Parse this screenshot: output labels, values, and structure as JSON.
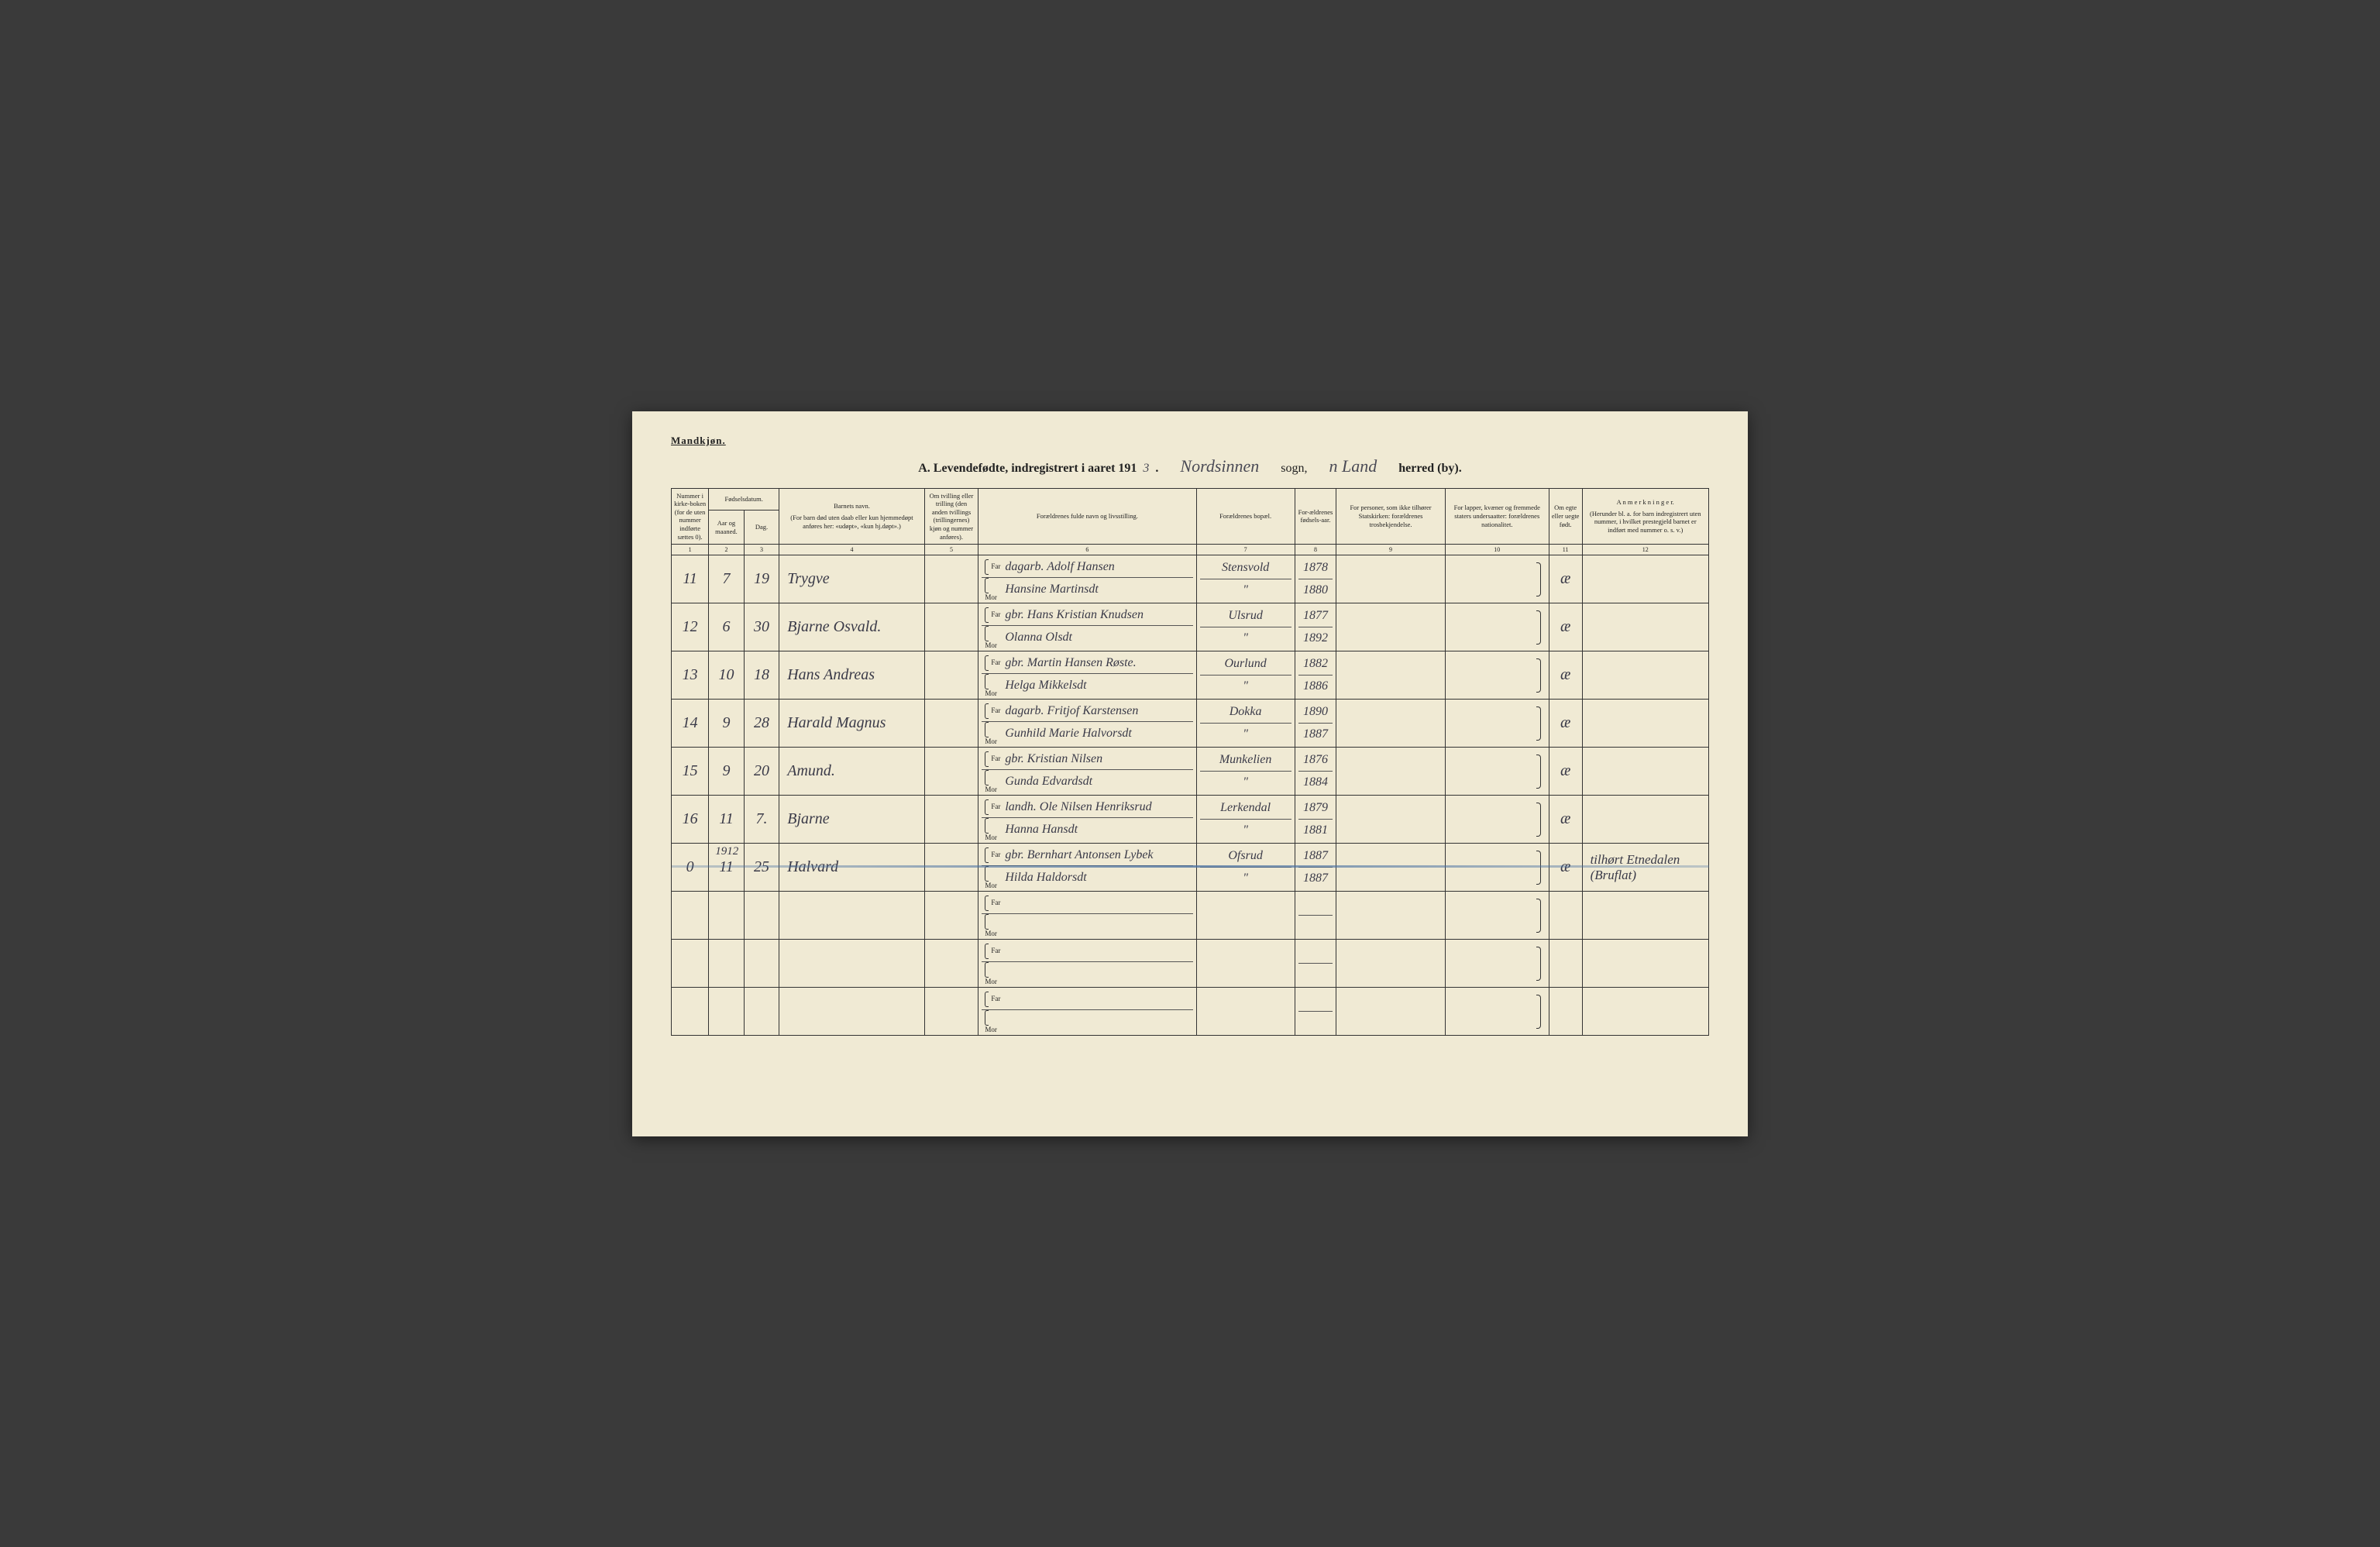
{
  "gender_label": "Mandkjøn.",
  "title": {
    "prefix": "A.  Levendefødte, indregistrert i aaret 191",
    "year_digit": "3",
    "dot": " .",
    "sogn_hand": "Nordsinnen",
    "sogn_label": "sogn,",
    "herred_hand": "n Land",
    "herred_label": "herred (by)."
  },
  "headers": {
    "c1": "Nummer i kirke-boken (for de uten nummer indførte sættes 0).",
    "c2_top": "Fødselsdatum.",
    "c2a": "Aar og maaned.",
    "c2b": "Dag.",
    "c4_top": "Barnets navn.",
    "c4_sub": "(For barn død uten daab eller kun hjemmedøpt anføres her: «udøpt», «kun hj.døpt».)",
    "c5": "Om tvilling eller trilling (den anden tvillings (trillingernes) kjøn og nummer anføres).",
    "c6": "Forældrenes fulde navn og livsstilling.",
    "c7": "Forældrenes bopæl.",
    "c8": "For-ældrenes fødsels-aar.",
    "c9": "For personer, som ikke tilhører Statskirken: forældrenes trosbekjendelse.",
    "c10": "For lapper, kvæner og fremmede staters undersaatter: forældrenes nationalitet.",
    "c11": "Om egte eller uegte født.",
    "c12_top": "A n m e r k n i n g e r.",
    "c12_sub": "(Herunder bl. a. for barn indregistrert uten nummer, i hvilket prestegjeld barnet er indført med nummer o. s. v.)"
  },
  "colnums": [
    "1",
    "2",
    "3",
    "4",
    "5",
    "6",
    "7",
    "8",
    "9",
    "10",
    "11",
    "12"
  ],
  "far_label": "Far",
  "mor_label": "Mor",
  "rows": [
    {
      "num": "11",
      "mnd": "7",
      "dag": "19",
      "navn": "Trygve",
      "far": "dagarb. Adolf Hansen",
      "mor": "Hansine Martinsdt",
      "bopel": "Stensvold",
      "bopel2": "\"",
      "yr1": "1878",
      "yr2": "1880",
      "egte": "æ",
      "anm": ""
    },
    {
      "num": "12",
      "mnd": "6",
      "dag": "30",
      "navn": "Bjarne Osvald.",
      "far": "gbr. Hans Kristian Knudsen",
      "mor": "Olanna Olsdt",
      "bopel": "Ulsrud",
      "bopel2": "\"",
      "yr1": "1877",
      "yr2": "1892",
      "egte": "æ",
      "anm": ""
    },
    {
      "num": "13",
      "mnd": "10",
      "dag": "18",
      "navn": "Hans Andreas",
      "far": "gbr. Martin Hansen Røste.",
      "mor": "Helga Mikkelsdt",
      "bopel": "Ourlund",
      "bopel2": "\"",
      "yr1": "1882",
      "yr2": "1886",
      "egte": "æ",
      "anm": ""
    },
    {
      "num": "14",
      "mnd": "9",
      "dag": "28",
      "navn": "Harald Magnus",
      "far": "dagarb. Fritjof Karstensen",
      "mor": "Gunhild Marie Halvorsdt",
      "bopel": "Dokka",
      "bopel2": "\"",
      "yr1": "1890",
      "yr2": "1887",
      "egte": "æ",
      "anm": ""
    },
    {
      "num": "15",
      "mnd": "9",
      "dag": "20",
      "navn": "Amund.",
      "far": "gbr. Kristian Nilsen",
      "mor": "Gunda Edvardsdt",
      "bopel": "Munkelien",
      "bopel2": "\"",
      "yr1": "1876",
      "yr2": "1884",
      "egte": "æ",
      "anm": ""
    },
    {
      "num": "16",
      "mnd": "11",
      "dag": "7.",
      "navn": "Bjarne",
      "far": "landh. Ole Nilsen Henriksrud",
      "mor": "Hanna Hansdt",
      "bopel": "Lerkendal",
      "bopel2": "\"",
      "yr1": "1879",
      "yr2": "1881",
      "egte": "æ",
      "anm": ""
    },
    {
      "num": "0",
      "yearnote": "1912",
      "mnd": "11",
      "dag": "25",
      "navn": "Halvard",
      "far": "gbr. Bernhart Antonsen Lybek",
      "mor": "Hilda Haldorsdt",
      "bopel": "Ofsrud",
      "bopel2": "\"",
      "yr1": "1887",
      "yr2": "1887",
      "egte": "æ",
      "anm": "tilhørt Etnedalen (Bruflat)",
      "strike": true
    },
    {
      "empty": true
    },
    {
      "empty": true
    },
    {
      "empty": true
    }
  ]
}
